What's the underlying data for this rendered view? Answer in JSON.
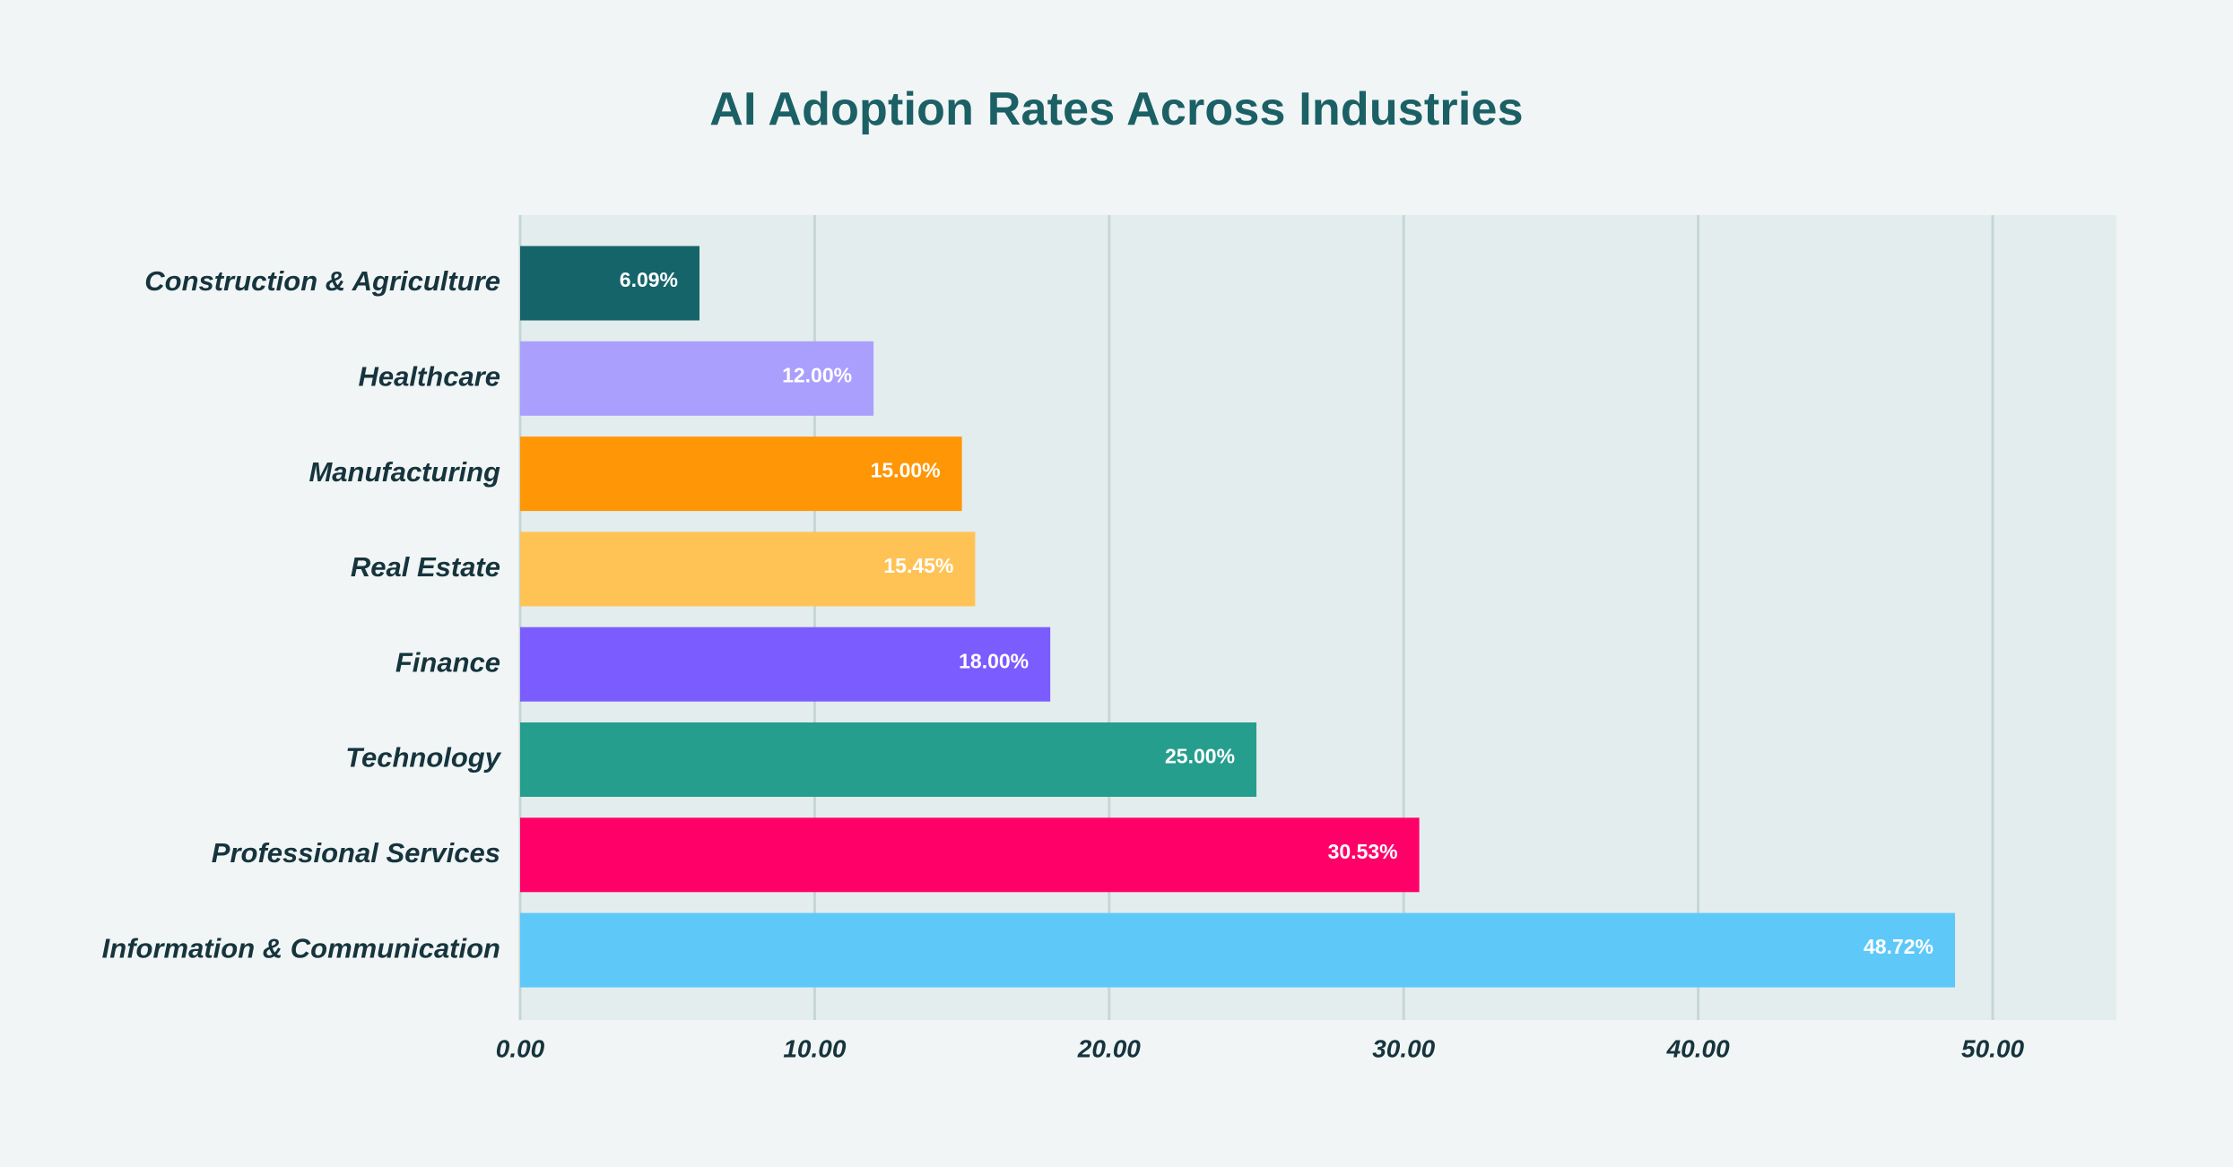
{
  "chart_data": {
    "type": "bar",
    "orientation": "horizontal",
    "title": "AI Adoption Rates Across Industries",
    "xlabel": "",
    "ylabel": "",
    "categories": [
      "Construction & Agriculture",
      "Healthcare",
      "Manufacturing",
      "Real Estate",
      "Finance",
      "Technology",
      "Professional Services",
      "Information & Communication"
    ],
    "values": [
      6.09,
      12.0,
      15.0,
      15.45,
      18.0,
      25.0,
      30.53,
      48.72
    ],
    "data_labels": [
      "6.09%",
      "12.00%",
      "15.00%",
      "15.45%",
      "18.00%",
      "25.00%",
      "30.53%",
      "48.72%"
    ],
    "colors": [
      "#15646a",
      "#aa9ffd",
      "#ff9606",
      "#ffc355",
      "#7b5cff",
      "#269e8d",
      "#ff0068",
      "#5ec8f9"
    ],
    "xticks": [
      0,
      10,
      20,
      30,
      40,
      50
    ],
    "xtick_labels": [
      "0.00",
      "10.00",
      "20.00",
      "30.00",
      "40.00",
      "50.00"
    ],
    "xlim": [
      0,
      54.2
    ],
    "grid": "vertical",
    "legend": "none",
    "plot_background": "#e4edee",
    "grid_color": "#c6d6d7"
  }
}
